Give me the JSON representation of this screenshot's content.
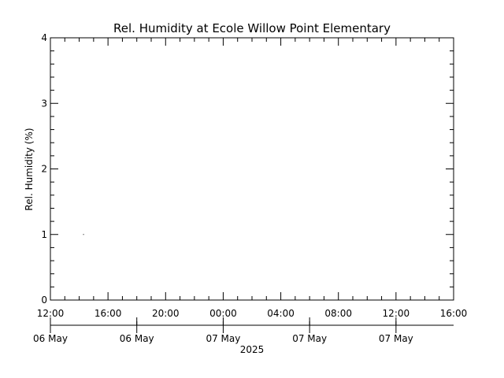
{
  "chart_data": {
    "type": "line",
    "title": "Rel. Humidity at Ecole Willow Point Elementary",
    "ylabel": "Rel. Humidity (%)",
    "xlabel": "",
    "ylim": [
      0,
      4
    ],
    "y_ticks": [
      0,
      1,
      2,
      3,
      4
    ],
    "x_time_labels": [
      "12:00",
      "16:00",
      "20:00",
      "00:00",
      "04:00",
      "08:00",
      "12:00",
      "16:00"
    ],
    "x_date_labels": [
      "06 May",
      "06 May",
      "07 May",
      "07 May",
      "07 May"
    ],
    "x_year_label": "2025",
    "xlim_hours": [
      0,
      28
    ],
    "grid": false,
    "series": [
      {
        "x_hours": [
          2.3
        ],
        "values": [
          1
        ],
        "color": "#000000"
      }
    ]
  }
}
